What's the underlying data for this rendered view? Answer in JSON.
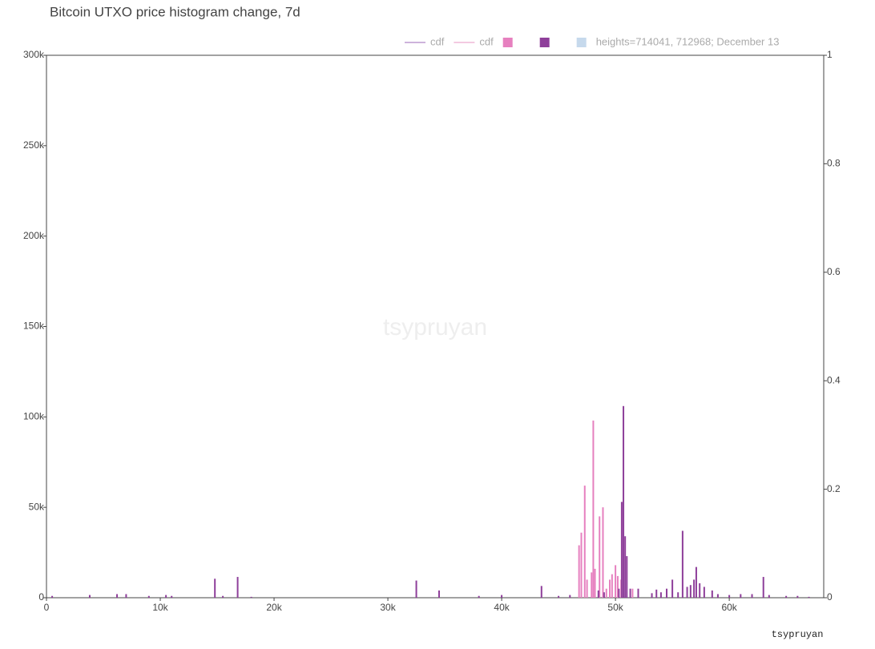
{
  "chart_data": {
    "type": "bar",
    "title": "Bitcoin UTXO price histogram change, 7d",
    "watermark": "tsypruyan",
    "footer": "tsypruyan",
    "xlim": [
      0,
      68300
    ],
    "xticks": [
      0,
      {
        "value": 10000,
        "label": "10k"
      },
      {
        "value": 20000,
        "label": "20k"
      },
      {
        "value": 30000,
        "label": "30k"
      },
      {
        "value": 40000,
        "label": "40k"
      },
      {
        "value": 50000,
        "label": "50k"
      },
      {
        "value": 60000,
        "label": "60k"
      }
    ],
    "ylim": [
      0,
      300000
    ],
    "yticks": [
      0,
      {
        "value": 50000,
        "label": "50k"
      },
      {
        "value": 100000,
        "label": "100k"
      },
      {
        "value": 150000,
        "label": "150k"
      },
      {
        "value": 200000,
        "label": "200k"
      },
      {
        "value": 250000,
        "label": "250k"
      },
      {
        "value": 300000,
        "label": "300k"
      }
    ],
    "y2lim": [
      0,
      1
    ],
    "y2ticks": [
      0,
      0.2,
      0.4,
      0.6,
      0.8,
      1
    ],
    "series": [
      {
        "name": "cdf",
        "kind": "line",
        "axis": "y2",
        "color": "#cdb3dc",
        "x": [],
        "values": []
      },
      {
        "name": "cdf",
        "kind": "line",
        "axis": "y2",
        "color": "#f3c9e1",
        "x": [],
        "values": []
      },
      {
        "kind": "bar",
        "color": "#e680bf",
        "x": [
          46800,
          47000,
          47300,
          47500,
          47900,
          48050,
          48200,
          48600,
          48900,
          49200,
          49500,
          49700,
          50000,
          50200,
          50500,
          51500
        ],
        "values": [
          29000,
          36000,
          62000,
          10000,
          14000,
          98000,
          16000,
          45000,
          50000,
          5000,
          10000,
          13000,
          18000,
          12000,
          10000,
          5000
        ]
      },
      {
        "kind": "bar",
        "color": "#8e3f9a",
        "x": [
          500,
          3800,
          6200,
          7000,
          9000,
          10500,
          11000,
          14800,
          15500,
          16800,
          18000,
          32500,
          34500,
          38000,
          40000,
          43500,
          45000,
          46000,
          48500,
          49000,
          50300,
          50550,
          50700,
          50850,
          51000,
          51300,
          52000,
          53200,
          53600,
          54000,
          54500,
          55000,
          55500,
          55900,
          56300,
          56600,
          56900,
          57100,
          57400,
          57800,
          58500,
          59000,
          60000,
          61000,
          62000,
          63000,
          63500,
          65000,
          66000,
          67000
        ],
        "values": [
          1000,
          1500,
          2000,
          2000,
          1000,
          1500,
          1000,
          10500,
          1000,
          11500,
          500,
          9500,
          4000,
          1000,
          1500,
          6500,
          1000,
          1500,
          4000,
          3000,
          5000,
          53000,
          106000,
          34000,
          23000,
          5000,
          5000,
          2500,
          4500,
          3000,
          5000,
          10000,
          3000,
          37000,
          6000,
          7000,
          10000,
          17000,
          8000,
          6000,
          4000,
          2000,
          1500,
          2000,
          2000,
          11500,
          1500,
          1000,
          1000,
          500
        ]
      },
      {
        "name": "heights=714041, 712968; December 13",
        "kind": "bar",
        "color": "#c6d9ec",
        "x": [],
        "values": []
      }
    ]
  }
}
